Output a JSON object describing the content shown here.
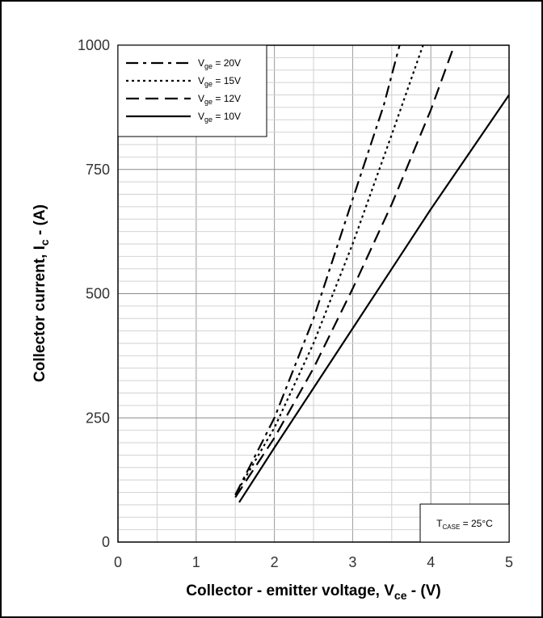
{
  "chart_data": {
    "type": "line",
    "xlabel": {
      "main": "Collector - emitter voltage, V",
      "sub": "ce",
      "tail": " - (V)"
    },
    "ylabel": {
      "main": "Collector current, I",
      "sub": "c",
      "tail": " - (A)"
    },
    "xlim": [
      0,
      5
    ],
    "ylim": [
      0,
      1000
    ],
    "xticks": [
      "0",
      "1",
      "2",
      "3",
      "4",
      "5"
    ],
    "yticks": [
      "0",
      "250",
      "500",
      "750",
      "1000"
    ],
    "grid": true,
    "legend_position": "top-left",
    "annotation": {
      "main": "T",
      "sub": "CASE",
      "tail": " = 25°C"
    },
    "series": [
      {
        "name": "V",
        "name_sub": "ge",
        "name_tail": " = 20V",
        "dash": "dashdot",
        "x": [
          1.5,
          2.0,
          2.5,
          3.0,
          3.4,
          3.6
        ],
        "y": [
          95,
          250,
          450,
          690,
          880,
          1000
        ]
      },
      {
        "name": "V",
        "name_sub": "ge",
        "name_tail": " = 15V",
        "dash": "dotted",
        "x": [
          1.5,
          2.0,
          2.5,
          3.0,
          3.5,
          3.9
        ],
        "y": [
          95,
          230,
          400,
          600,
          820,
          1000
        ]
      },
      {
        "name": "V",
        "name_sub": "ge",
        "name_tail": " = 12V",
        "dash": "dashed",
        "x": [
          1.5,
          2.0,
          2.5,
          3.0,
          3.5,
          4.0,
          4.3
        ],
        "y": [
          90,
          210,
          350,
          510,
          680,
          870,
          1000
        ]
      },
      {
        "name": "V",
        "name_sub": "ge",
        "name_tail": " = 10V",
        "dash": "solid",
        "x": [
          1.55,
          2.0,
          2.5,
          3.0,
          3.5,
          4.0,
          4.5,
          5.0
        ],
        "y": [
          80,
          190,
          310,
          430,
          550,
          670,
          785,
          900
        ]
      }
    ]
  }
}
